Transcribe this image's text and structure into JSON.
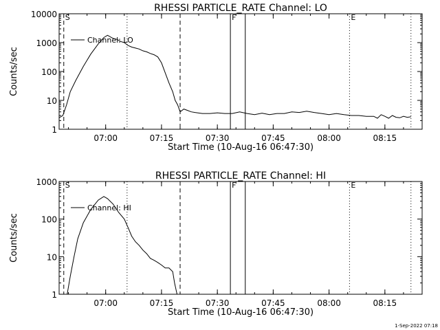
{
  "footer": {
    "timestamp": "1-Sep-2022 07:18"
  },
  "chart_data": [
    {
      "type": "line",
      "title": "RHESSI PARTICLE_RATE Channel: LO",
      "xlabel": "Start Time (10-Aug-16 06:47:30)",
      "ylabel": "Counts/sec",
      "yscale": "log",
      "xlim": [
        "06:47:30",
        "08:25:00"
      ],
      "ylim": [
        1,
        10000
      ],
      "xticks": [
        "07:00",
        "07:15",
        "07:30",
        "07:45",
        "08:00",
        "08:15"
      ],
      "yticks": [
        "1",
        "10",
        "100",
        "1000",
        "10000"
      ],
      "legend": {
        "label": "Channel: LO",
        "position": "top-left"
      },
      "markers": [
        {
          "time": "06:48:45",
          "label": "S",
          "style": "dashed"
        },
        {
          "time": "07:05:45",
          "label": "",
          "style": "dotted"
        },
        {
          "time": "07:20:00",
          "label": "",
          "style": "dashed"
        },
        {
          "time": "07:33:30",
          "label": "F",
          "style": "solid"
        },
        {
          "time": "07:37:30",
          "label": "",
          "style": "solid"
        },
        {
          "time": "08:05:30",
          "label": "E",
          "style": "dotted"
        },
        {
          "time": "08:22:00",
          "label": "",
          "style": "dotted"
        }
      ],
      "series": [
        {
          "name": "Channel: LO",
          "x": [
            "06:47:30",
            "06:48:30",
            "06:49:30",
            "06:50:30",
            "06:52:00",
            "06:54:00",
            "06:56:00",
            "06:58:00",
            "06:59:30",
            "07:00:30",
            "07:02:00",
            "07:03:00",
            "07:04:00",
            "07:05:00",
            "07:06:00",
            "07:07:00",
            "07:08:00",
            "07:09:00",
            "07:10:00",
            "07:11:00",
            "07:12:00",
            "07:13:00",
            "07:14:00",
            "07:15:00",
            "07:16:00",
            "07:17:00",
            "07:18:00",
            "07:18:40",
            "07:19:20",
            "07:20:00",
            "07:21:00",
            "07:22:00",
            "07:23:00",
            "07:24:00",
            "07:26:00",
            "07:28:00",
            "07:30:00",
            "07:32:00",
            "07:34:00",
            "07:36:00",
            "07:38:00",
            "07:40:00",
            "07:42:00",
            "07:44:00",
            "07:46:00",
            "07:48:00",
            "07:50:00",
            "07:52:00",
            "07:54:00",
            "07:56:00",
            "07:58:00",
            "08:00:00",
            "08:02:00",
            "08:04:00",
            "08:06:00",
            "08:08:00",
            "08:10:00",
            "08:12:00",
            "08:13:00",
            "08:14:00",
            "08:15:00",
            "08:16:00",
            "08:17:00",
            "08:18:00",
            "08:19:00",
            "08:20:00",
            "08:21:00",
            "08:22:00"
          ],
          "y": [
            2.5,
            3,
            7,
            20,
            50,
            150,
            400,
            900,
            1500,
            1800,
            1400,
            1300,
            1100,
            1000,
            800,
            700,
            650,
            600,
            520,
            480,
            420,
            380,
            320,
            200,
            90,
            40,
            20,
            10,
            7,
            4,
            5,
            4.5,
            4,
            3.8,
            3.5,
            3.5,
            3.7,
            3.5,
            3.5,
            4,
            3.5,
            3.2,
            3.6,
            3.2,
            3.5,
            3.5,
            4,
            3.8,
            4.2,
            3.8,
            3.5,
            3.2,
            3.5,
            3.2,
            3,
            3,
            2.8,
            2.8,
            2.4,
            3.2,
            2.8,
            2.4,
            3,
            2.6,
            2.5,
            2.8,
            2.6,
            2.7
          ]
        }
      ]
    },
    {
      "type": "line",
      "title": "RHESSI PARTICLE_RATE Channel: HI",
      "xlabel": "Start Time (10-Aug-16 06:47:30)",
      "ylabel": "Counts/sec",
      "yscale": "log",
      "xlim": [
        "06:47:30",
        "08:25:00"
      ],
      "ylim": [
        1,
        1000
      ],
      "xticks": [
        "07:00",
        "07:15",
        "07:30",
        "07:45",
        "08:00",
        "08:15"
      ],
      "yticks": [
        "1",
        "10",
        "100",
        "1000"
      ],
      "legend": {
        "label": "Channel: HI",
        "position": "top-left"
      },
      "markers": [
        {
          "time": "06:48:45",
          "label": "S",
          "style": "dashed"
        },
        {
          "time": "07:05:45",
          "label": "",
          "style": "dotted"
        },
        {
          "time": "07:20:00",
          "label": "",
          "style": "dashed"
        },
        {
          "time": "07:33:30",
          "label": "F",
          "style": "solid"
        },
        {
          "time": "07:37:30",
          "label": "",
          "style": "solid"
        },
        {
          "time": "08:05:30",
          "label": "E",
          "style": "dotted"
        },
        {
          "time": "08:22:00",
          "label": "",
          "style": "dotted"
        }
      ],
      "series": [
        {
          "name": "Channel: HI",
          "x": [
            "06:49:40",
            "06:50:30",
            "06:51:30",
            "06:52:30",
            "06:54:00",
            "06:56:00",
            "06:58:00",
            "06:59:30",
            "07:00:30",
            "07:02:00",
            "07:03:30",
            "07:05:00",
            "07:06:00",
            "07:07:00",
            "07:08:00",
            "07:09:00",
            "07:10:00",
            "07:11:00",
            "07:12:00",
            "07:13:00",
            "07:14:00",
            "07:15:00",
            "07:16:00",
            "07:17:00",
            "07:18:00",
            "07:18:30",
            "07:19:10"
          ],
          "y": [
            1,
            3,
            10,
            30,
            80,
            180,
            320,
            400,
            350,
            250,
            150,
            100,
            60,
            35,
            25,
            20,
            15,
            12,
            9,
            8,
            7,
            6,
            5,
            5,
            4,
            2,
            1
          ]
        }
      ]
    }
  ]
}
